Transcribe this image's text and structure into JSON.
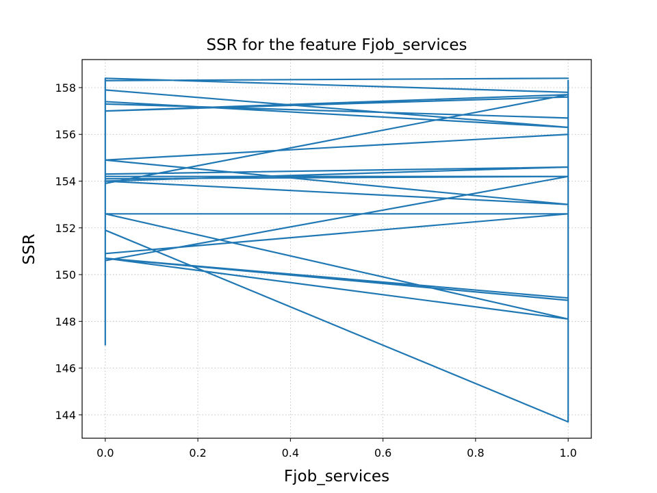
{
  "chart_data": {
    "type": "line",
    "title": "SSR for the feature Fjob_services",
    "xlabel": "Fjob_services",
    "ylabel": "SSR",
    "xlim": [
      -0.05,
      1.05
    ],
    "ylim": [
      143.0,
      159.2
    ],
    "xticks": [
      0.0,
      0.2,
      0.4,
      0.6,
      0.8,
      1.0
    ],
    "xtick_labels": [
      "0.0",
      "0.2",
      "0.4",
      "0.6",
      "0.8",
      "1.0"
    ],
    "yticks": [
      144,
      146,
      148,
      150,
      152,
      154,
      156,
      158
    ],
    "ytick_labels": [
      "144",
      "146",
      "148",
      "150",
      "152",
      "154",
      "156",
      "158"
    ],
    "grid": true,
    "grid_style": "dotted",
    "color": "#1f77b4",
    "series": [
      {
        "x": [
          0,
          0,
          1,
          1,
          0,
          0,
          1,
          1,
          0,
          0,
          1,
          1,
          0,
          0,
          1,
          1,
          0,
          0,
          1,
          1,
          0,
          0,
          1,
          1,
          0,
          0,
          1,
          1,
          0,
          0,
          1,
          1,
          0,
          0,
          1,
          1,
          0,
          0,
          1,
          1,
          0,
          0,
          1,
          1,
          0,
          0,
          1,
          1,
          0,
          0,
          1,
          1
        ],
        "y": [
          147.0,
          151.9,
          143.7,
          148.9,
          150.7,
          150.6,
          154.2,
          157.7,
          153.9,
          154.3,
          154.6,
          152.6,
          150.9,
          158.3,
          158.4,
          158.4,
          158.3,
          158.4,
          157.8,
          157.7,
          157.0,
          157.3,
          156.7,
          156.0,
          154.9,
          154.9,
          153.0,
          152.6,
          152.6,
          152.6,
          148.1,
          149.0,
          150.7,
          150.7,
          148.1,
          156.3,
          157.4,
          157.9,
          156.3,
          154.2,
          154.2,
          154.1,
          154.2,
          154.6,
          154.0,
          154.0,
          153.0,
          157.6,
          157.0,
          157.0,
          157.6,
          158.3
        ]
      }
    ]
  }
}
